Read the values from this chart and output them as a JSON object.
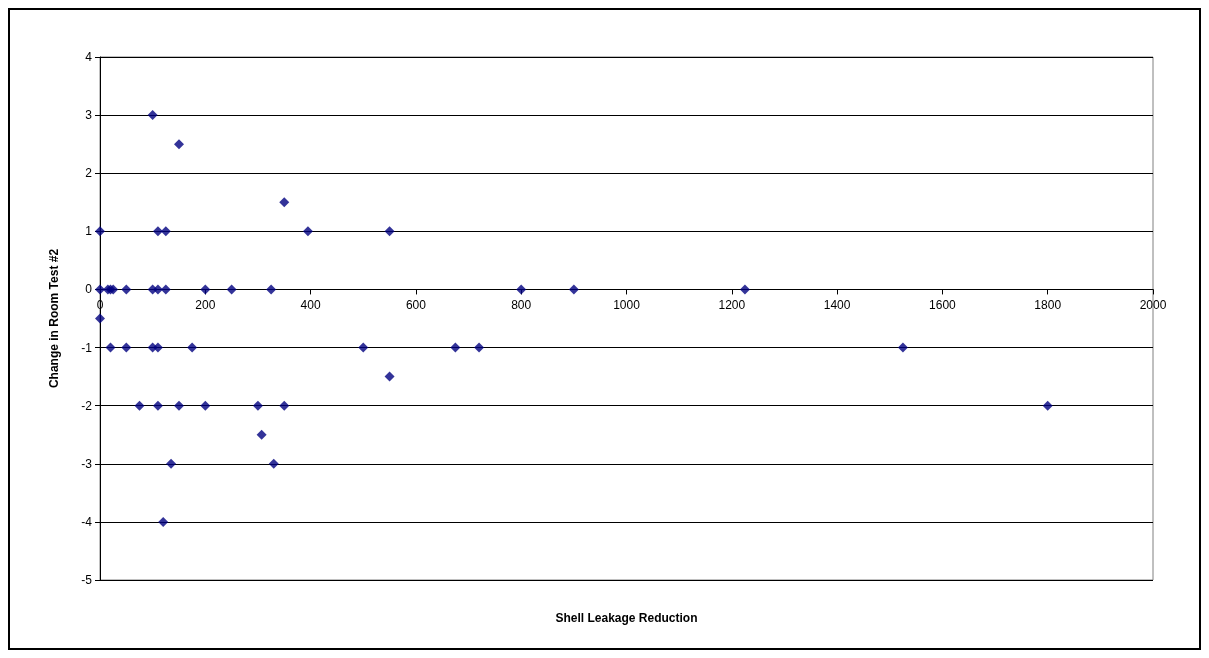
{
  "chart_data": {
    "type": "scatter",
    "xlabel": "Shell Leakage Reduction",
    "ylabel": "Change in Room Test #2",
    "x": [
      100,
      150,
      350,
      0,
      110,
      125,
      395,
      550,
      0,
      15,
      20,
      25,
      50,
      100,
      110,
      125,
      200,
      250,
      325,
      800,
      900,
      1225,
      0,
      20,
      50,
      100,
      110,
      175,
      500,
      675,
      720,
      1525,
      550,
      75,
      110,
      150,
      200,
      300,
      350,
      1800,
      307,
      135,
      330,
      120
    ],
    "values": [
      3,
      2.5,
      1.5,
      1,
      1,
      1,
      1,
      1,
      0,
      0,
      0,
      0,
      0,
      0,
      0,
      0,
      0,
      0,
      0,
      0,
      0,
      0,
      -0.5,
      -1,
      -1,
      -1,
      -1,
      -1,
      -1,
      -1,
      -1,
      -1,
      -1.5,
      -2,
      -2,
      -2,
      -2,
      -2,
      -2,
      -2,
      -2.5,
      -3,
      -3,
      -4
    ],
    "color": "#000080",
    "marker": "diamond",
    "xlim": [
      0,
      2000
    ],
    "xticks": [
      0,
      200,
      400,
      600,
      800,
      1000,
      1200,
      1400,
      1600,
      1800,
      2000
    ],
    "ylim": [
      -5,
      4
    ],
    "yticks": [
      -5,
      -4,
      -3,
      -2,
      -1,
      0,
      1,
      2,
      3,
      4
    ],
    "grid": "y"
  }
}
